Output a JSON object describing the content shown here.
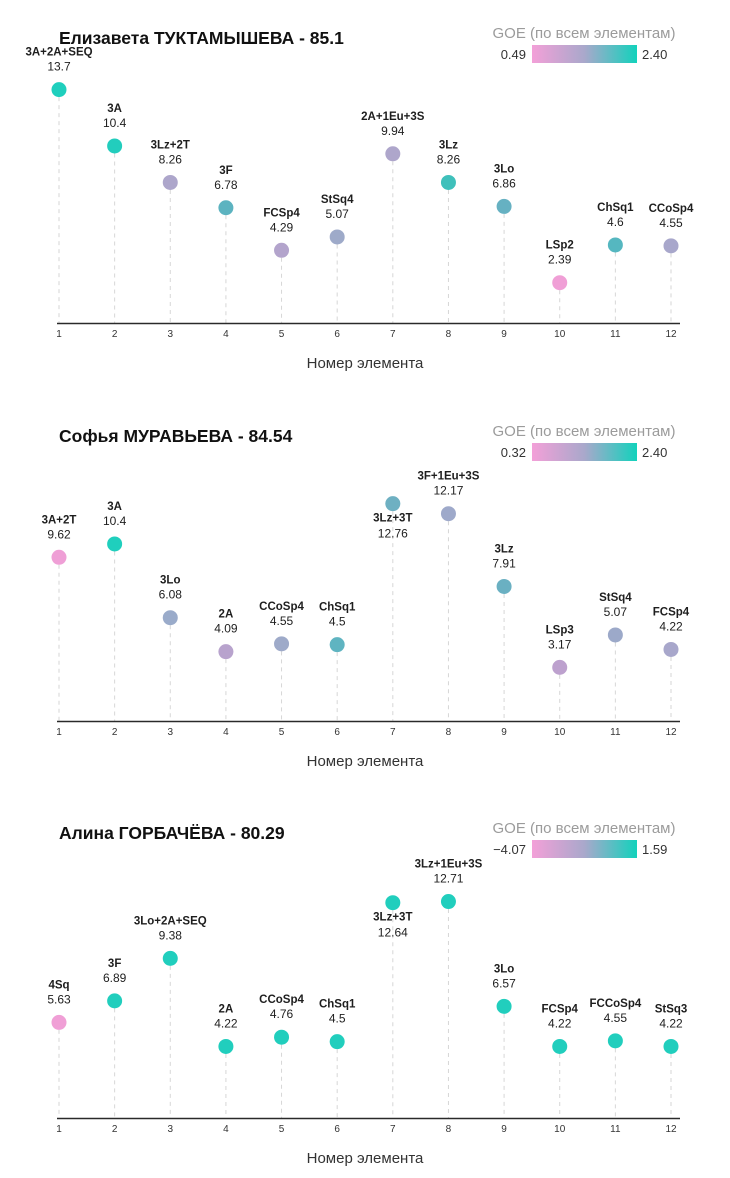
{
  "chart_data": [
    {
      "type": "scatter",
      "title": "Елизавета ТУКТАМЫШЕВА - 85.1",
      "xlabel": "Номер элемента",
      "ylabel": "",
      "xlim": [
        1,
        12
      ],
      "ylim": [
        0,
        14
      ],
      "grid": false,
      "x_ticks": [
        1,
        2,
        3,
        4,
        5,
        6,
        7,
        8,
        9,
        10,
        11,
        12
      ],
      "legend": {
        "title": "GOE (по всем элементам)",
        "min_label": "0.49",
        "max_label": "2.40",
        "colors": [
          "#f3a0d8",
          "#a9a8cb",
          "#12d2bc"
        ],
        "placement": "top-right"
      },
      "points": [
        {
          "x": 1,
          "element": "3A+2A+SEQ",
          "value": 13.7,
          "color": "#1fcfbd",
          "label_placement": "above"
        },
        {
          "x": 2,
          "element": "3A",
          "value": 10.4,
          "color": "#22cdbd",
          "label_placement": "above"
        },
        {
          "x": 3,
          "element": "3Lz+2T",
          "value": 8.26,
          "color": "#ada6cb",
          "label_placement": "above"
        },
        {
          "x": 4,
          "element": "3F",
          "value": 6.78,
          "color": "#5cb3c0",
          "label_placement": "above"
        },
        {
          "x": 5,
          "element": "FCSp4",
          "value": 4.29,
          "color": "#b3a4cc",
          "label_placement": "above"
        },
        {
          "x": 6,
          "element": "StSq4",
          "value": 5.07,
          "color": "#9eaac9",
          "label_placement": "above"
        },
        {
          "x": 7,
          "element": "2A+1Eu+3S",
          "value": 9.94,
          "color": "#aea6cb",
          "label_placement": "above"
        },
        {
          "x": 8,
          "element": "3Lz",
          "value": 8.26,
          "color": "#3fc0bb",
          "label_placement": "above"
        },
        {
          "x": 9,
          "element": "3Lo",
          "value": 6.86,
          "color": "#66b1c2",
          "label_placement": "above"
        },
        {
          "x": 10,
          "element": "LSp2",
          "value": 2.39,
          "color": "#f09fd6",
          "label_placement": "above"
        },
        {
          "x": 11,
          "element": "ChSq1",
          "value": 4.6,
          "color": "#55b7c0",
          "label_placement": "above"
        },
        {
          "x": 12,
          "element": "CCoSp4",
          "value": 4.55,
          "color": "#a8a7cb",
          "label_placement": "above"
        }
      ]
    },
    {
      "type": "scatter",
      "title": "Софья МУРАВЬЕВА - 84.54",
      "xlabel": "Номер элемента",
      "ylabel": "",
      "xlim": [
        1,
        12
      ],
      "ylim": [
        0,
        14
      ],
      "grid": false,
      "x_ticks": [
        1,
        2,
        3,
        4,
        5,
        6,
        7,
        8,
        9,
        10,
        11,
        12
      ],
      "legend": {
        "title": "GOE (по всем элементам)",
        "min_label": "0.32",
        "max_label": "2.40",
        "colors": [
          "#f3a0d8",
          "#a9a8cb",
          "#12d2bc"
        ],
        "placement": "top-right"
      },
      "points": [
        {
          "x": 1,
          "element": "3A+2T",
          "value": 9.62,
          "color": "#ef9fd6",
          "label_placement": "above"
        },
        {
          "x": 2,
          "element": "3A",
          "value": 10.4,
          "color": "#1fcfbd",
          "label_placement": "above"
        },
        {
          "x": 3,
          "element": "3Lo",
          "value": 6.08,
          "color": "#9aabca",
          "label_placement": "above"
        },
        {
          "x": 4,
          "element": "2A",
          "value": 4.09,
          "color": "#b8a3cd",
          "label_placement": "above"
        },
        {
          "x": 5,
          "element": "CCoSp4",
          "value": 4.55,
          "color": "#9eaac9",
          "label_placement": "above"
        },
        {
          "x": 6,
          "element": "ChSq1",
          "value": 4.5,
          "color": "#5fb4c1",
          "label_placement": "above"
        },
        {
          "x": 7,
          "element": "3Lz+3T",
          "value": 12.76,
          "color": "#6eb0c2",
          "label_placement": "below"
        },
        {
          "x": 8,
          "element": "3F+1Eu+3S",
          "value": 12.17,
          "color": "#9ea9ca",
          "label_placement": "above"
        },
        {
          "x": 9,
          "element": "3Lz",
          "value": 7.91,
          "color": "#6ab0c2",
          "label_placement": "above"
        },
        {
          "x": 10,
          "element": "LSp3",
          "value": 3.17,
          "color": "#bda1ce",
          "label_placement": "above"
        },
        {
          "x": 11,
          "element": "StSq4",
          "value": 5.07,
          "color": "#9ca9c9",
          "label_placement": "above"
        },
        {
          "x": 12,
          "element": "FCSp4",
          "value": 4.22,
          "color": "#a8a7cb",
          "label_placement": "above"
        }
      ]
    },
    {
      "type": "scatter",
      "title": "Алина ГОРБАЧЁВА - 80.29",
      "xlabel": "Номер элемента",
      "ylabel": "",
      "xlim": [
        1,
        12
      ],
      "ylim": [
        0,
        14
      ],
      "grid": false,
      "x_ticks": [
        1,
        2,
        3,
        4,
        5,
        6,
        7,
        8,
        9,
        10,
        11,
        12
      ],
      "legend": {
        "title": "GOE (по всем элементам)",
        "min_label": "−4.07",
        "max_label": "1.59",
        "colors": [
          "#f3a0d8",
          "#a9a8cb",
          "#12d2bc"
        ],
        "placement": "top-right"
      },
      "points": [
        {
          "x": 1,
          "element": "4Sq",
          "value": 5.63,
          "color": "#f09fd6",
          "label_placement": "above"
        },
        {
          "x": 2,
          "element": "3F",
          "value": 6.89,
          "color": "#21cebd",
          "label_placement": "above"
        },
        {
          "x": 3,
          "element": "3Lo+2A+SEQ",
          "value": 9.38,
          "color": "#21cebd",
          "label_placement": "above"
        },
        {
          "x": 4,
          "element": "2A",
          "value": 4.22,
          "color": "#21cebd",
          "label_placement": "above"
        },
        {
          "x": 5,
          "element": "CCoSp4",
          "value": 4.76,
          "color": "#21cebd",
          "label_placement": "above"
        },
        {
          "x": 6,
          "element": "ChSq1",
          "value": 4.5,
          "color": "#21cebd",
          "label_placement": "above"
        },
        {
          "x": 7,
          "element": "3Lz+3T",
          "value": 12.64,
          "color": "#21cebd",
          "label_placement": "below"
        },
        {
          "x": 8,
          "element": "3Lz+1Eu+3S",
          "value": 12.71,
          "color": "#21cebd",
          "label_placement": "above"
        },
        {
          "x": 9,
          "element": "3Lo",
          "value": 6.57,
          "color": "#21cebd",
          "label_placement": "above"
        },
        {
          "x": 10,
          "element": "FCSp4",
          "value": 4.22,
          "color": "#21cebd",
          "label_placement": "above"
        },
        {
          "x": 11,
          "element": "FCCoSp4",
          "value": 4.55,
          "color": "#21cebd",
          "label_placement": "above"
        },
        {
          "x": 12,
          "element": "StSq3",
          "value": 4.22,
          "color": "#21cebd",
          "label_placement": "above"
        }
      ]
    }
  ]
}
